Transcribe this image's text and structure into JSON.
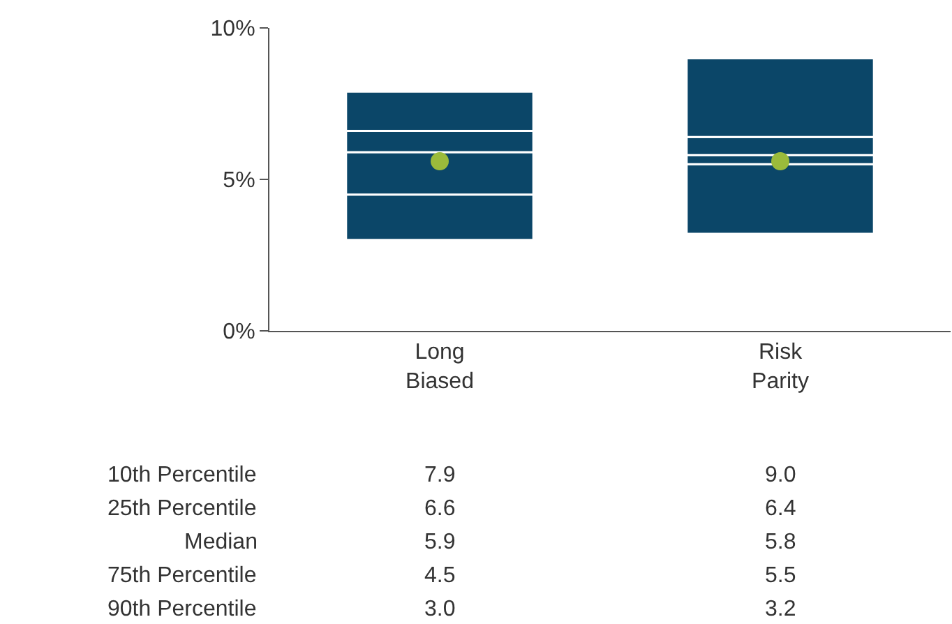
{
  "chart_data": {
    "type": "bar",
    "categories": [
      "Long Biased",
      "Risk Parity"
    ],
    "series": [
      {
        "color": "#0b4668",
        "base": [
          3.0,
          3.2
        ],
        "values": [
          1.5,
          2.3
        ]
      },
      {
        "color": "#0b4668",
        "base": [
          4.5,
          5.5
        ],
        "values": [
          1.4,
          0.3
        ]
      },
      {
        "color": "#0b4668",
        "base": [
          5.9,
          5.8
        ],
        "values": [
          0.7,
          0.6
        ]
      },
      {
        "color": "#0b4668",
        "base": [
          6.6,
          6.4
        ],
        "values": [
          1.3,
          2.6
        ]
      },
      {
        "type": "scatter",
        "color": "#9bbb3b",
        "x": [
          "Long Biased",
          "Risk Parity"
        ],
        "values": [
          5.6,
          5.6
        ]
      }
    ],
    "ylim": [
      0,
      10
    ],
    "yticks": [
      {
        "value": 0,
        "label": "0%"
      },
      {
        "value": 5,
        "label": "5%"
      },
      {
        "value": 10,
        "label": "10%"
      }
    ],
    "grid": false,
    "marker": "circle",
    "annotations": [
      "10th Percentile",
      "7.9",
      "9.0",
      "25th Percentile",
      "6.6",
      "6.4",
      "Median",
      "5.9",
      "5.8",
      "75th Percentile",
      "4.5",
      "5.5",
      "90th Percentile",
      "3.0",
      "3.2"
    ]
  }
}
